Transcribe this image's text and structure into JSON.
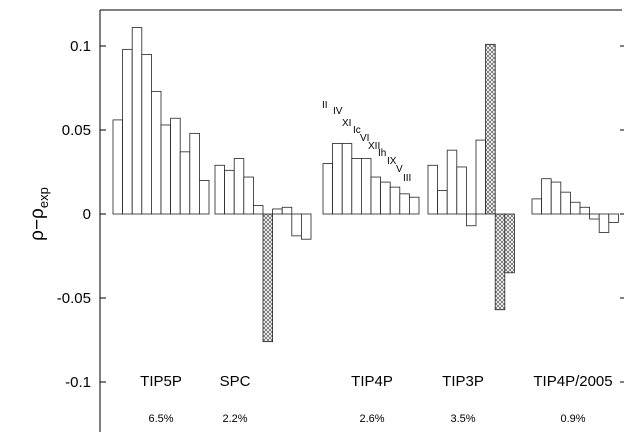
{
  "chart_data": {
    "type": "bar",
    "ylabel": "ρ−ρ",
    "ylabel_sub": "exp",
    "ylim": [
      -0.12,
      0.12
    ],
    "yticks": [
      0.1,
      0.05,
      0,
      -0.05,
      -0.1
    ],
    "ytick_labels": [
      "0.1",
      "0.05",
      "0",
      "-0.05",
      "-0.1"
    ],
    "phase_labels": [
      "II",
      "IV",
      "XI",
      "Ic",
      "VI",
      "XII",
      "Ih",
      "IX",
      "V",
      "III"
    ],
    "groups": [
      {
        "name": "TIP5P",
        "percent": "6.5%",
        "values": [
          0.056,
          0.098,
          0.111,
          0.095,
          0.073,
          0.053,
          0.057,
          0.037,
          0.048,
          0.02
        ],
        "hatched": [
          false,
          false,
          false,
          false,
          false,
          false,
          false,
          false,
          false,
          false
        ]
      },
      {
        "name": "SPC",
        "percent": "2.2%",
        "values": [
          0.029,
          0.026,
          0.033,
          0.022,
          0.005,
          -0.076,
          0.003,
          0.004,
          -0.013,
          -0.015
        ],
        "hatched": [
          false,
          false,
          false,
          false,
          false,
          true,
          false,
          false,
          false,
          false
        ]
      },
      {
        "name": "TIP4P",
        "percent": "2.6%",
        "values": [
          0.03,
          0.042,
          0.042,
          0.033,
          0.033,
          0.022,
          0.019,
          0.016,
          0.012,
          0.01
        ],
        "hatched": [
          false,
          false,
          false,
          false,
          false,
          false,
          false,
          false,
          false,
          false
        ]
      },
      {
        "name": "TIP3P",
        "percent": "3.5%",
        "values": [
          0.029,
          0.014,
          0.038,
          0.028,
          -0.007,
          0.044,
          0.101,
          -0.057,
          -0.035
        ],
        "hatched": [
          false,
          false,
          false,
          false,
          false,
          false,
          true,
          true,
          true
        ]
      },
      {
        "name": "TIP4P/2005",
        "percent": "0.9%",
        "values": [
          0.009,
          0.021,
          0.019,
          0.013,
          0.007,
          0.004,
          -0.003,
          -0.011,
          -0.005
        ],
        "hatched": [
          false,
          false,
          false,
          false,
          false,
          false,
          false,
          false,
          false
        ]
      }
    ]
  }
}
